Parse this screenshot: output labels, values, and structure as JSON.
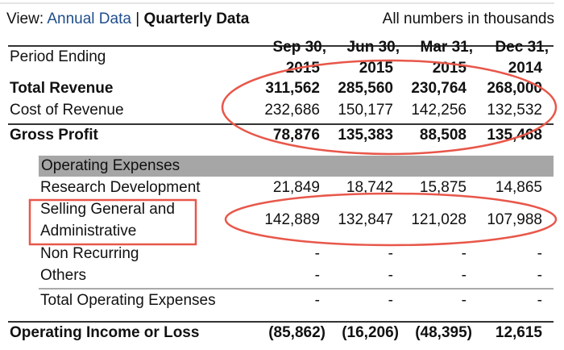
{
  "header": {
    "view_label": "View:",
    "annual_link": "Annual Data",
    "separator": "|",
    "quarterly_label": "Quarterly Data",
    "units_note": "All numbers in thousands"
  },
  "table": {
    "period_label": "Period Ending",
    "columns": [
      {
        "line1": "Sep 30,",
        "line2": "2015"
      },
      {
        "line1": "Jun 30,",
        "line2": "2015"
      },
      {
        "line1": "Mar 31,",
        "line2": "2015"
      },
      {
        "line1": "Dec 31,",
        "line2": "2014"
      }
    ],
    "rows": {
      "total_revenue": {
        "label": "Total Revenue",
        "values": [
          "311,562",
          "285,560",
          "230,764",
          "268,000"
        ]
      },
      "cost_of_revenue": {
        "label": "Cost of Revenue",
        "values": [
          "232,686",
          "150,177",
          "142,256",
          "132,532"
        ]
      },
      "gross_profit": {
        "label": "Gross Profit",
        "values": [
          "78,876",
          "135,383",
          "88,508",
          "135,468"
        ]
      },
      "opex_header": {
        "label": "Operating Expenses"
      },
      "rnd": {
        "label": "Research Development",
        "values": [
          "21,849",
          "18,742",
          "15,875",
          "14,865"
        ]
      },
      "sga": {
        "label_line1": "Selling General and",
        "label_line2": "Administrative",
        "values": [
          "142,889",
          "132,847",
          "121,028",
          "107,988"
        ]
      },
      "non_recurring": {
        "label": "Non Recurring",
        "values": [
          "-",
          "-",
          "-",
          "-"
        ]
      },
      "others": {
        "label": "Others",
        "values": [
          "-",
          "-",
          "-",
          "-"
        ]
      },
      "total_opex": {
        "label": "Total Operating Expenses",
        "values": [
          "-",
          "-",
          "-",
          "-"
        ]
      },
      "operating_income": {
        "label": "Operating Income or Loss",
        "values": [
          "(85,862)",
          "(16,206)",
          "(48,395)",
          "12,615"
        ]
      }
    }
  },
  "annotation_color": "#e8574a"
}
